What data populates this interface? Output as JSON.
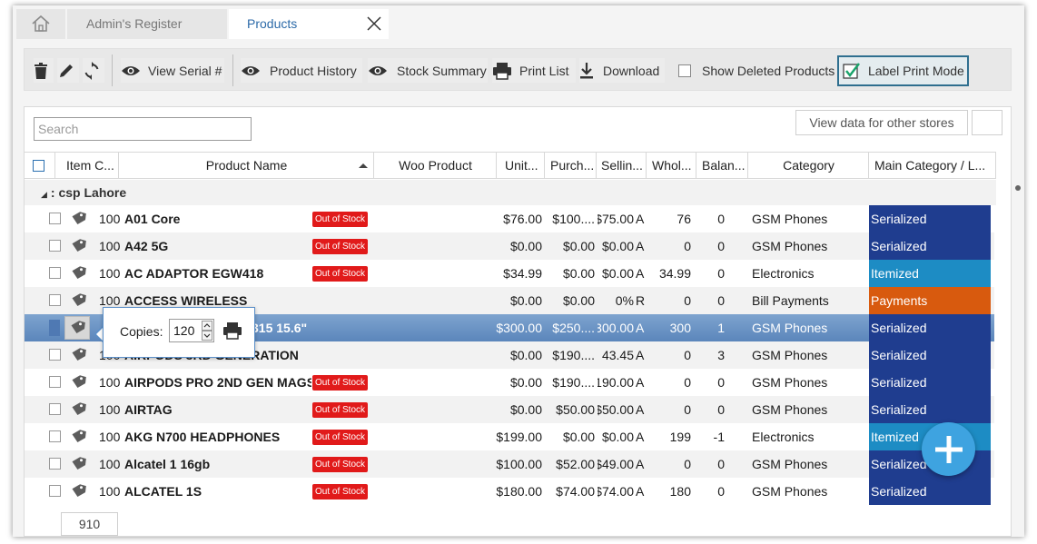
{
  "tabs": {
    "home_icon": "home-icon",
    "admin": "Admin's Register",
    "products": "Products",
    "close_icon": "close-icon"
  },
  "toolbar": {
    "view_serial": "View Serial #",
    "product_history": "Product History",
    "stock_summary": "Stock Summary",
    "print_list": "Print List",
    "download": "Download",
    "show_deleted": "Show Deleted Products",
    "label_print_mode": "Label Print Mode",
    "label_print_mode_checked": true
  },
  "search": {
    "placeholder": "Search"
  },
  "view_other_stores": "View data for other stores",
  "columns": {
    "item_code": "Item C...",
    "product_name": "Product Name",
    "woo_product": "Woo Product",
    "unit": "Unit...",
    "purchase": "Purch...",
    "selling": "Sellin...",
    "wholesale": "Whol...",
    "balance": "Balan...",
    "category": "Category",
    "main_category": "Main Category / L..."
  },
  "group": {
    "label": ": csp Lahore"
  },
  "rows": [
    {
      "qty": "100",
      "name": "A01 Core",
      "stock": "Out of Stock",
      "unit": "$76.00",
      "purchase": "$100....",
      "selling": "$75.00",
      "flag": "A",
      "wholesale": "76",
      "balance": "0",
      "category": "GSM Phones",
      "main": "Serialized"
    },
    {
      "qty": "100",
      "name": "A42 5G",
      "stock": "Out of Stock",
      "unit": "$0.00",
      "purchase": "$0.00",
      "selling": "$0.00",
      "flag": "A",
      "wholesale": "0",
      "balance": "0",
      "category": "GSM Phones",
      "main": "Serialized"
    },
    {
      "qty": "100",
      "name": "AC ADAPTOR EGW418",
      "stock": "Out of Stock",
      "unit": "$34.99",
      "purchase": "$0.00",
      "selling": "$0.00",
      "flag": "A",
      "wholesale": "34.99",
      "balance": "0",
      "category": "Electronics",
      "main": "Itemized"
    },
    {
      "qty": "100",
      "name": "ACCESS WIRELESS",
      "stock": "",
      "unit": "$0.00",
      "purchase": "$0.00",
      "selling": "0%",
      "flag": "R",
      "wholesale": "0",
      "balance": "0",
      "category": "Bill Payments",
      "main": "Payments"
    },
    {
      "qty": "",
      "name": "315 15.6\"",
      "stock": "",
      "unit": "$300.00",
      "purchase": "$250....",
      "selling": "300.00",
      "flag": "A",
      "wholesale": "300",
      "balance": "1",
      "category": "GSM Phones",
      "main": "Serialized"
    },
    {
      "qty": "100",
      "name": "AIRPODS 3RD GENERATION",
      "stock": "",
      "unit": "$0.00",
      "purchase": "$190....",
      "selling": "43.45",
      "flag": "A",
      "wholesale": "0",
      "balance": "3",
      "category": "GSM Phones",
      "main": "Serialized"
    },
    {
      "qty": "100",
      "name": "AIRPODS PRO 2ND GEN MAGSAFE",
      "stock": "Out of Stock",
      "unit": "$0.00",
      "purchase": "$190....",
      "selling": "190.00",
      "flag": "A",
      "wholesale": "0",
      "balance": "0",
      "category": "GSM Phones",
      "main": "Serialized"
    },
    {
      "qty": "100",
      "name": "AIRTAG",
      "stock": "Out of Stock",
      "unit": "$0.00",
      "purchase": "$50.00",
      "selling": "$50.00",
      "flag": "A",
      "wholesale": "0",
      "balance": "0",
      "category": "GSM Phones",
      "main": "Serialized"
    },
    {
      "qty": "100",
      "name": "AKG N700 HEADPHONES",
      "stock": "Out of Stock",
      "unit": "$199.00",
      "purchase": "$0.00",
      "selling": "$0.00",
      "flag": "A",
      "wholesale": "199",
      "balance": "-1",
      "category": "Electronics",
      "main": "Itemized"
    },
    {
      "qty": "100",
      "name": "Alcatel 1 16gb",
      "stock": "Out of Stock",
      "unit": "$100.00",
      "purchase": "$52.00",
      "selling": "$49.00",
      "flag": "A",
      "wholesale": "0",
      "balance": "0",
      "category": "GSM Phones",
      "main": "Serialized"
    },
    {
      "qty": "100",
      "name": "ALCATEL 1S",
      "stock": "Out of Stock",
      "unit": "$180.00",
      "purchase": "$74.00",
      "selling": "$74.00",
      "flag": "A",
      "wholesale": "180",
      "balance": "0",
      "category": "GSM Phones",
      "main": "Serialized"
    }
  ],
  "main_colors": {
    "Serialized": "#1f3d8f",
    "Itemized": "#1d8cc4",
    "Payments": "#d85a0e"
  },
  "popup": {
    "label": "Copies:",
    "value": "120"
  },
  "footer": {
    "count": "910"
  },
  "fab_icon": "plus-icon"
}
